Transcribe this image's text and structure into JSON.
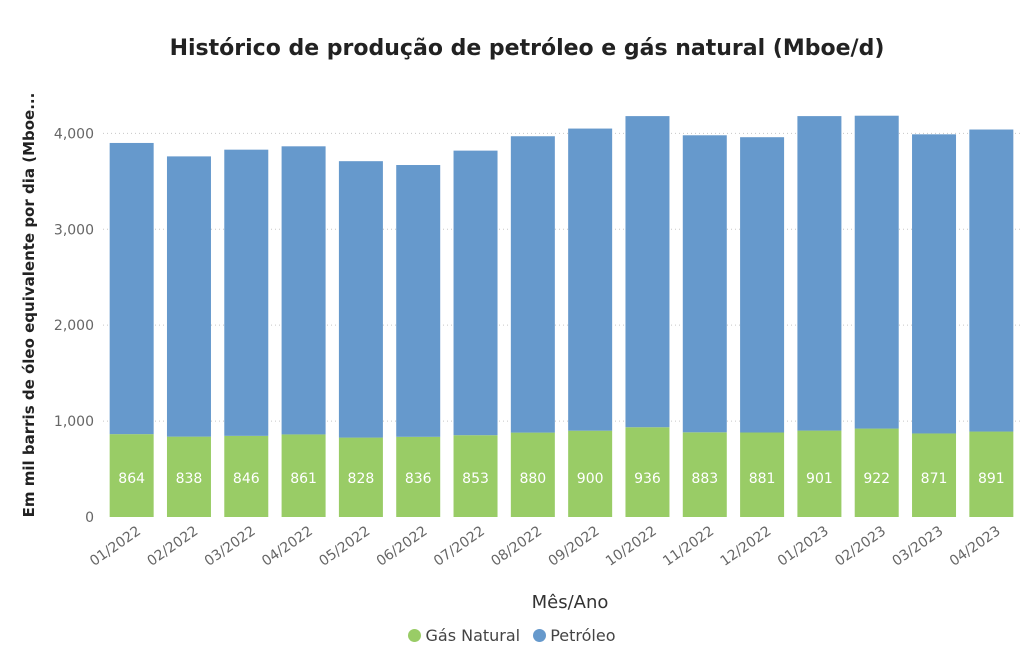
{
  "chart_data": {
    "type": "bar",
    "stacked": true,
    "title": "Histórico de produção de petróleo e gás natural (Mboe/d)",
    "xlabel": "Mês/Ano",
    "ylabel": "Em mil barris de óleo equivalente por dia (Mboe...",
    "categories": [
      "01/2022",
      "02/2022",
      "03/2022",
      "04/2022",
      "05/2022",
      "06/2022",
      "07/2022",
      "08/2022",
      "09/2022",
      "10/2022",
      "11/2022",
      "12/2022",
      "01/2023",
      "02/2023",
      "03/2023",
      "04/2023"
    ],
    "series": [
      {
        "name": "Gás Natural",
        "color": "#99CC66",
        "values": [
          864,
          838,
          846,
          861,
          828,
          836,
          853,
          880,
          900,
          936,
          883,
          881,
          901,
          922,
          871,
          891
        ]
      },
      {
        "name": "Petróleo",
        "color": "#6699CC",
        "values": [
          3036,
          2922,
          2984,
          3004,
          2882,
          2834,
          2967,
          3090,
          3150,
          3244,
          3097,
          3079,
          3279,
          3262,
          3119,
          3149
        ]
      }
    ],
    "ylim": [
      0,
      4400
    ],
    "yticks": [
      0,
      1000,
      2000,
      3000,
      4000
    ],
    "ytick_labels": [
      "0",
      "1,000",
      "2,000",
      "3,000",
      "4,000"
    ],
    "grid": true,
    "legend_position": "bottom"
  }
}
